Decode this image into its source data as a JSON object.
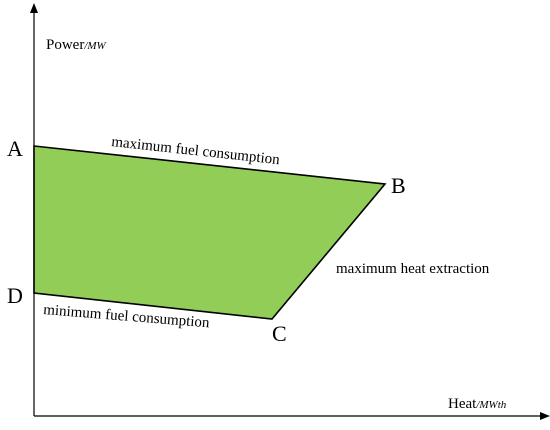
{
  "axes": {
    "y_label": "Power",
    "y_unit": "/MW",
    "x_label": "Heat",
    "x_unit": "/MWth"
  },
  "region": {
    "fill_color": "#92cd58",
    "stroke_color": "#000000"
  },
  "vertices": {
    "a": "A",
    "b": "B",
    "c": "C",
    "d": "D"
  },
  "edges": {
    "ab": "maximum fuel consumption",
    "bc": "maximum heat extraction",
    "dc": "minimum fuel consumption"
  }
}
